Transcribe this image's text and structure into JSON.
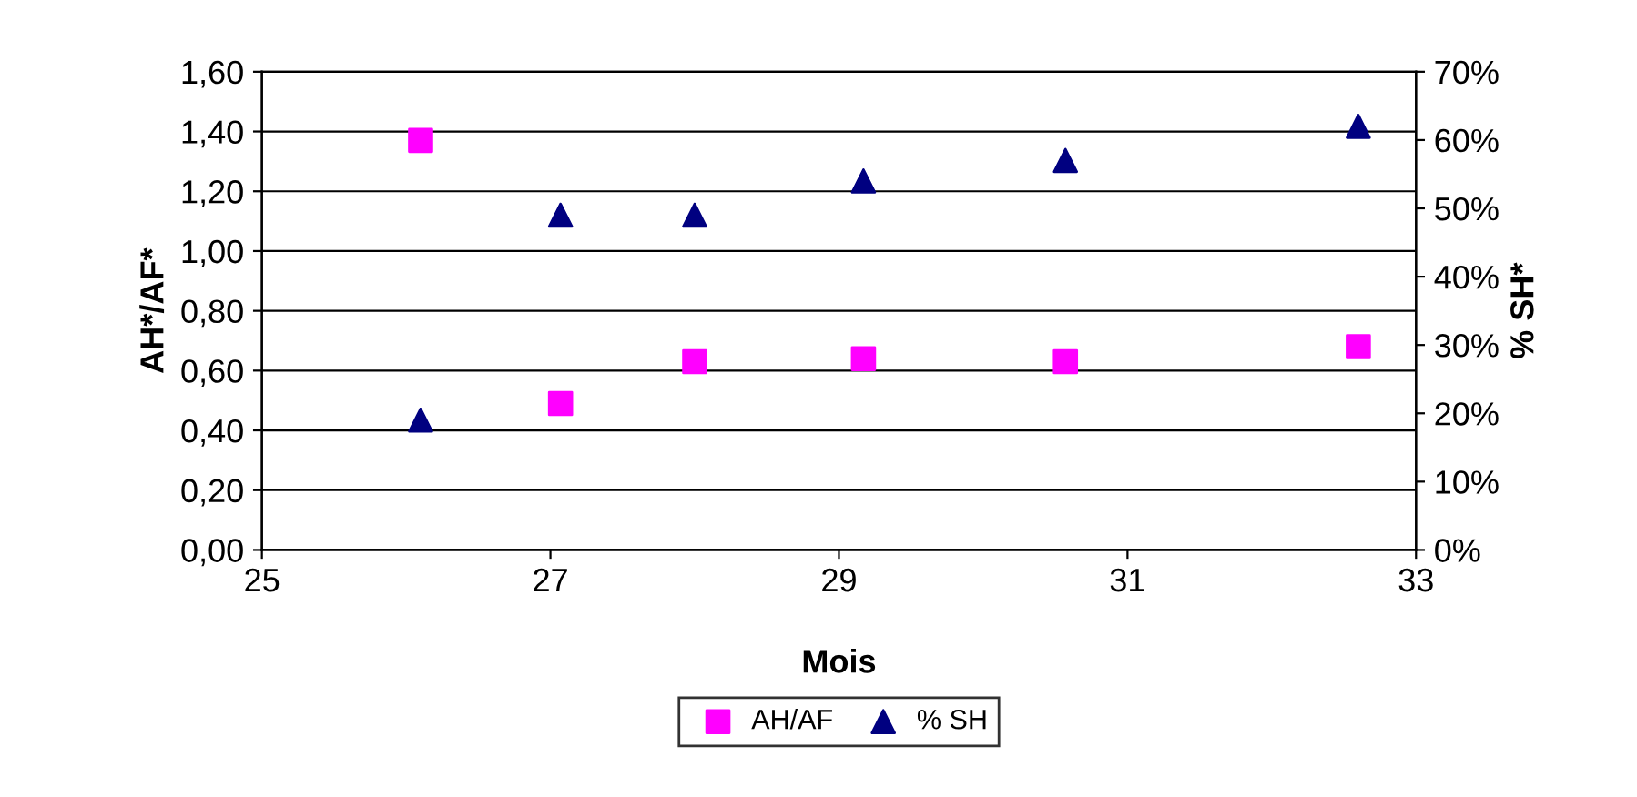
{
  "chart_data": {
    "type": "scatter",
    "xlabel": "Mois",
    "ylabel": "AH*/AF*",
    "y2label": "% SH*",
    "x": [
      26.1,
      27.07,
      28.0,
      29.17,
      30.57,
      32.6
    ],
    "series": [
      {
        "name": "AH/AF",
        "color": "#ff00ff",
        "marker": "square",
        "values": [
          1.37,
          0.49,
          0.63,
          0.64,
          0.63,
          0.68
        ]
      },
      {
        "name": "% SH",
        "color": "#000080",
        "marker": "triangle",
        "axis": "y2",
        "values": [
          19,
          49,
          49,
          54,
          57,
          62
        ]
      }
    ],
    "xlim": [
      25,
      33
    ],
    "xticks": [
      25,
      27,
      29,
      31,
      33
    ],
    "ylim": [
      0,
      1.6
    ],
    "yticks": [
      {
        "value": 0,
        "label": "0,00"
      },
      {
        "value": 0.2,
        "label": "0,20"
      },
      {
        "value": 0.4,
        "label": "0,40"
      },
      {
        "value": 0.6,
        "label": "0,60"
      },
      {
        "value": 0.8,
        "label": "0,80"
      },
      {
        "value": 1.0,
        "label": "1,00"
      },
      {
        "value": 1.2,
        "label": "1,20"
      },
      {
        "value": 1.4,
        "label": "1,40"
      },
      {
        "value": 1.6,
        "label": "1,60"
      }
    ],
    "y2lim": [
      0,
      70
    ],
    "y2ticks": [
      {
        "value": 0,
        "label": "0%"
      },
      {
        "value": 10,
        "label": "10%"
      },
      {
        "value": 20,
        "label": "20%"
      },
      {
        "value": 30,
        "label": "30%"
      },
      {
        "value": 40,
        "label": "40%"
      },
      {
        "value": 50,
        "label": "50%"
      },
      {
        "value": 60,
        "label": "60%"
      },
      {
        "value": 70,
        "label": "70%"
      }
    ],
    "grid": "y",
    "legend": "bottom"
  }
}
